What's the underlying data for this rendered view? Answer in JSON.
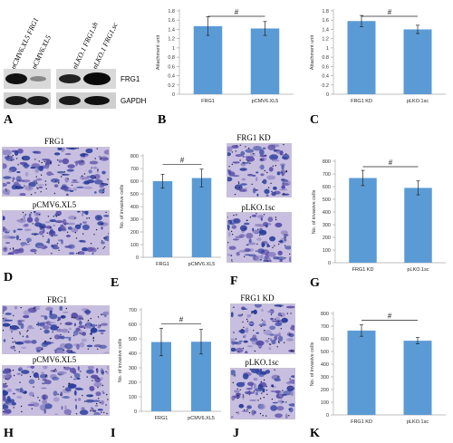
{
  "panels": {
    "A": "A",
    "B": "B",
    "C": "C",
    "D": "D",
    "E": "E",
    "F": "F",
    "G": "G",
    "H": "H",
    "I": "I",
    "J": "J",
    "K": "K"
  },
  "western_blot": {
    "lanes": [
      "pCMV6.XL5 FRG1",
      "pCMV6.XL5",
      "pLKO.1 FRG1.sh",
      "pLKO.1 FRG1.sc"
    ],
    "bands": [
      "FRG1",
      "GAPDH"
    ]
  },
  "micrographs": {
    "D_top": "FRG1",
    "D_bottom": "pCMV6.XL5",
    "F_top": "FRG1 KD",
    "F_bottom": "pLKO.1sc",
    "H_top": "FRG1",
    "H_bottom": "pCMV6.XL5",
    "J_top": "FRG1 KD",
    "J_bottom": "pLKO.1sc"
  },
  "chart_data": [
    {
      "panel": "B",
      "type": "bar",
      "categories": [
        "FRG1",
        "pCMV6.XL5"
      ],
      "values": [
        1.47,
        1.42
      ],
      "errors": [
        0.2,
        0.15
      ],
      "ylabel": "Attachment unit",
      "ylim": [
        0,
        1.8
      ],
      "yticks": [
        "0",
        "0.2",
        "0.4",
        "0.6",
        "0.8",
        "1",
        "1.2",
        "1.4",
        "1.6",
        "1.8"
      ],
      "significance": "#",
      "color": "#5b9bd5"
    },
    {
      "panel": "C",
      "type": "bar",
      "categories": [
        "FRG1 KD",
        "pLKO.1sc"
      ],
      "values": [
        1.58,
        1.4
      ],
      "errors": [
        0.12,
        0.09
      ],
      "ylabel": "Attachment unit",
      "ylim": [
        0,
        1.8
      ],
      "yticks": [
        "0",
        "0.2",
        "0.4",
        "0.6",
        "0.8",
        "1",
        "1.2",
        "1.4",
        "1.6",
        "1.8"
      ],
      "significance": "#",
      "color": "#5b9bd5"
    },
    {
      "panel": "E",
      "type": "bar",
      "categories": [
        "FRG1",
        "pCMV6.XL5"
      ],
      "values": [
        600,
        625
      ],
      "errors": [
        55,
        70
      ],
      "ylabel": "No. of invasive cells",
      "ylim": [
        0,
        800
      ],
      "yticks": [
        "0",
        "100",
        "200",
        "300",
        "400",
        "500",
        "600",
        "700",
        "800"
      ],
      "significance": "#",
      "color": "#5b9bd5"
    },
    {
      "panel": "G",
      "type": "bar",
      "categories": [
        "FRG1 KD",
        "pLKO.1sc"
      ],
      "values": [
        668,
        590
      ],
      "errors": [
        60,
        55
      ],
      "ylabel": "No. of invasive cells",
      "ylim": [
        0,
        800
      ],
      "yticks": [
        "0",
        "100",
        "200",
        "300",
        "400",
        "500",
        "600",
        "700",
        "800"
      ],
      "significance": "#",
      "color": "#5b9bd5"
    },
    {
      "panel": "I",
      "type": "bar",
      "categories": [
        "FRG1",
        "pCMV6.XL5"
      ],
      "values": [
        478,
        480
      ],
      "errors": [
        95,
        85
      ],
      "ylabel": "No. of invasive cells",
      "ylim": [
        0,
        700
      ],
      "yticks": [
        "0",
        "100",
        "200",
        "300",
        "400",
        "500",
        "600",
        "700"
      ],
      "significance": "#",
      "color": "#5b9bd5"
    },
    {
      "panel": "K",
      "type": "bar",
      "categories": [
        "FRG1 KD",
        "pLKO.1sc"
      ],
      "values": [
        665,
        585
      ],
      "errors": [
        45,
        25
      ],
      "ylabel": "No. of invasive cells",
      "ylim": [
        0,
        800
      ],
      "yticks": [
        "0",
        "100",
        "200",
        "300",
        "400",
        "500",
        "600",
        "700",
        "800"
      ],
      "significance": "#",
      "color": "#5b9bd5"
    }
  ]
}
